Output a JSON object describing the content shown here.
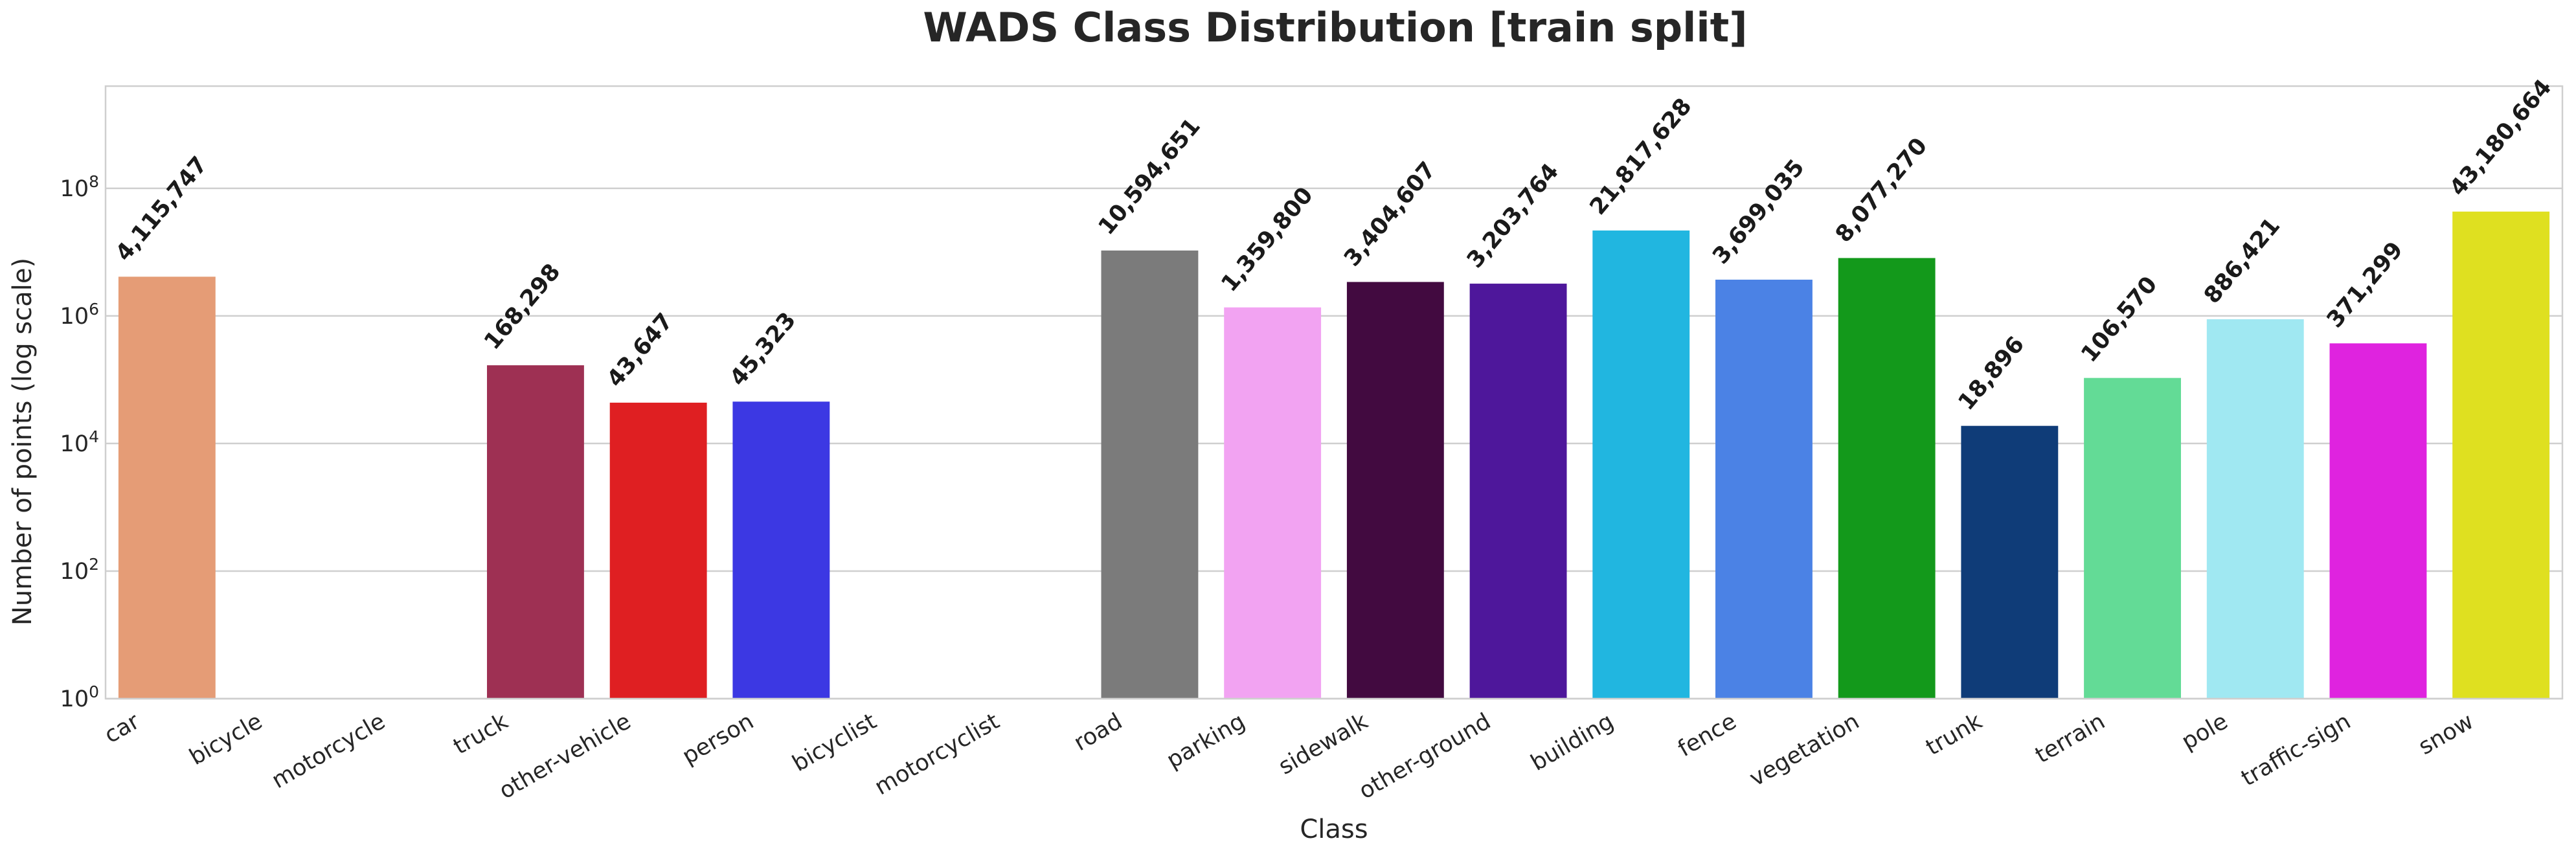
{
  "chart_data": {
    "type": "bar",
    "title": "WADS Class Distribution [train split]",
    "xlabel": "Class",
    "ylabel": "Number of points (log scale)",
    "yscale": "log",
    "ylim": [
      1,
      4000000000
    ],
    "yticks": [
      {
        "value": 1,
        "base": "10",
        "exp": "0"
      },
      {
        "value": 100,
        "base": "10",
        "exp": "2"
      },
      {
        "value": 10000,
        "base": "10",
        "exp": "4"
      },
      {
        "value": 1000000,
        "base": "10",
        "exp": "6"
      },
      {
        "value": 100000000,
        "base": "10",
        "exp": "8"
      }
    ],
    "grid": true,
    "categories": [
      "car",
      "bicycle",
      "motorcycle",
      "truck",
      "other-vehicle",
      "person",
      "bicyclist",
      "motorcyclist",
      "road",
      "parking",
      "sidewalk",
      "other-ground",
      "building",
      "fence",
      "vegetation",
      "trunk",
      "terrain",
      "pole",
      "traffic-sign",
      "snow"
    ],
    "values": [
      4115747,
      0,
      0,
      168298,
      43647,
      45323,
      0,
      0,
      10594651,
      1359800,
      3404607,
      3203764,
      21817628,
      3699035,
      8077270,
      18896,
      106570,
      886421,
      371299,
      43180664
    ],
    "data_labels": [
      "4,115,747",
      "",
      "",
      "168,298",
      "43,647",
      "45,323",
      "",
      "",
      "10,594,651",
      "1,359,800",
      "3,404,607",
      "3,203,764",
      "21,817,628",
      "3,699,035",
      "8,077,270",
      "18,896",
      "106,570",
      "886,421",
      "371,299",
      "43,180,664"
    ],
    "colors": [
      "#e59c76",
      "#ffffff",
      "#ffffff",
      "#9e3053",
      "#df1f22",
      "#3c38e3",
      "#ffffff",
      "#ffffff",
      "#7b7b7b",
      "#f2a3f2",
      "#420a40",
      "#4e179b",
      "#21b6e0",
      "#4b82e5",
      "#13991b",
      "#0f3c78",
      "#63db96",
      "#a0e8f2",
      "#df23df",
      "#dfe020"
    ]
  }
}
